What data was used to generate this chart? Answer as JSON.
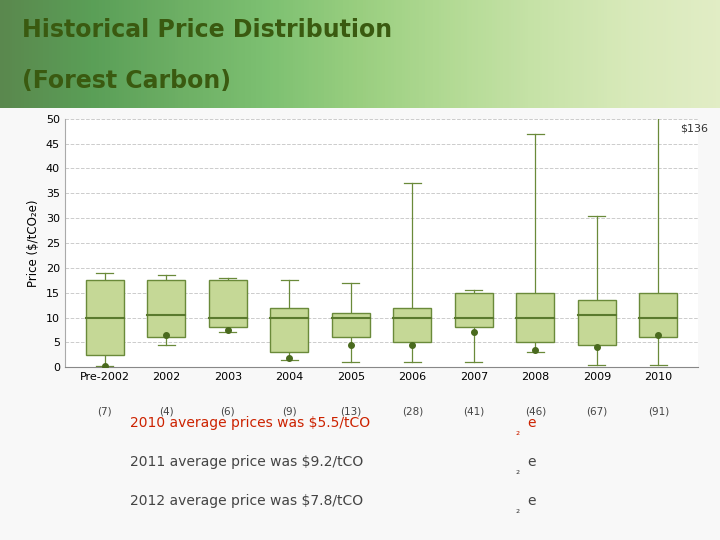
{
  "title_line1": "Historical Price Distribution",
  "title_line2": "(Forest Carbon)",
  "ylabel": "Price ($/tCO₂e)",
  "categories": [
    "Pre-2002",
    "2002",
    "2003",
    "2004",
    "2005",
    "2006",
    "2007",
    "2008",
    "2009",
    "2010"
  ],
  "sample_sizes": [
    "(7)",
    "(4)",
    "(6)",
    "(9)",
    "(13)",
    "(28)",
    "(41)",
    "(46)",
    "(67)",
    "(91)"
  ],
  "box_data": [
    {
      "whislo": 0.3,
      "q1": 2.5,
      "med": 10.0,
      "q3": 17.5,
      "whishi": 19.0,
      "mean": 0.3
    },
    {
      "whislo": 4.5,
      "q1": 6.0,
      "med": 10.5,
      "q3": 17.5,
      "whishi": 18.5,
      "mean": 6.5
    },
    {
      "whislo": 7.0,
      "q1": 8.0,
      "med": 10.0,
      "q3": 17.5,
      "whishi": 18.0,
      "mean": 7.5
    },
    {
      "whislo": 1.5,
      "q1": 3.0,
      "med": 10.0,
      "q3": 12.0,
      "whishi": 17.5,
      "mean": 1.8
    },
    {
      "whislo": 1.0,
      "q1": 6.0,
      "med": 10.0,
      "q3": 11.0,
      "whishi": 17.0,
      "mean": 4.5
    },
    {
      "whislo": 1.0,
      "q1": 5.0,
      "med": 10.0,
      "q3": 12.0,
      "whishi": 37.0,
      "mean": 4.5
    },
    {
      "whislo": 1.0,
      "q1": 8.0,
      "med": 10.0,
      "q3": 15.0,
      "whishi": 15.5,
      "mean": 7.0
    },
    {
      "whislo": 3.0,
      "q1": 5.0,
      "med": 10.0,
      "q3": 15.0,
      "whishi": 47.0,
      "mean": 3.5
    },
    {
      "whislo": 0.5,
      "q1": 4.5,
      "med": 10.5,
      "q3": 13.5,
      "whishi": 30.5,
      "mean": 4.0
    },
    {
      "whislo": 0.5,
      "q1": 6.0,
      "med": 10.0,
      "q3": 15.0,
      "whishi": 136.0,
      "mean": 6.5
    }
  ],
  "box_facecolor": "#c5d896",
  "box_edgecolor": "#6a8a3a",
  "median_color": "#5a7a2e",
  "whisker_color": "#6a8a3a",
  "mean_color": "#4a6a1e",
  "grid_color": "#cccccc",
  "bg_color": "#ffffff",
  "title_bg_left": "#c8dc8c",
  "title_bg_right": "#f0f5e0",
  "ylim": [
    0,
    50
  ],
  "yticks": [
    0,
    5,
    10,
    15,
    20,
    25,
    30,
    35,
    40,
    45,
    50
  ],
  "annotation_2010": "$136",
  "note_color_line1": "#cc2200",
  "note_color_line23": "#444444",
  "fig_bg": "#f8f8f8"
}
